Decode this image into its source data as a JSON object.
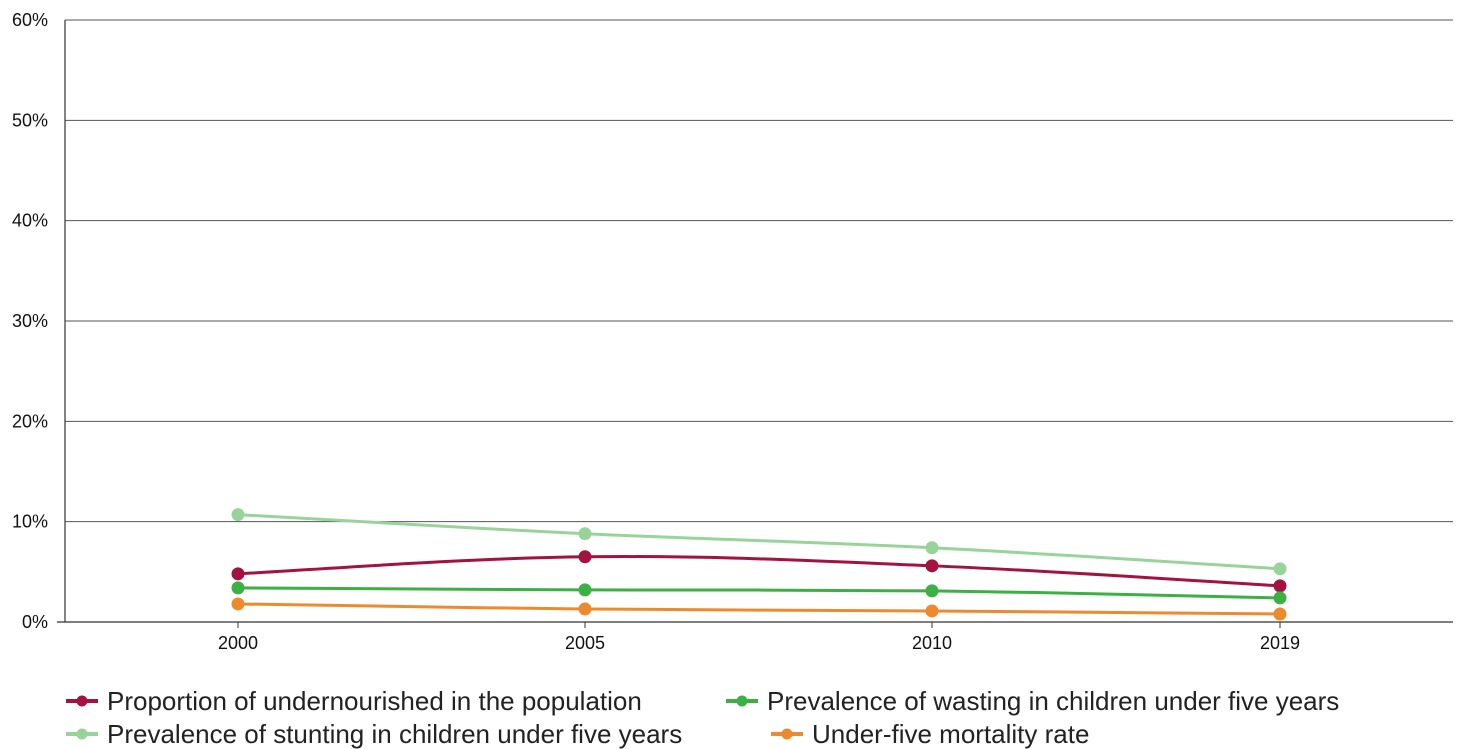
{
  "chart_data": {
    "type": "line",
    "title": "",
    "xlabel": "",
    "ylabel": "",
    "categories": [
      "2000",
      "2005",
      "2010",
      "2019"
    ],
    "ylim": [
      0,
      60
    ],
    "y_ticks": [
      0,
      10,
      20,
      30,
      40,
      50,
      60
    ],
    "y_tick_labels": [
      "0%",
      "10%",
      "20%",
      "30%",
      "40%",
      "50%",
      "60%"
    ],
    "grid": true,
    "legend_position": "bottom-left",
    "series": [
      {
        "name": "Proportion of undernourished in the population",
        "color": "#a4123f",
        "values": [
          4.8,
          6.5,
          5.6,
          3.6
        ]
      },
      {
        "name": "Prevalence of wasting in children under five years",
        "color": "#3cb043",
        "values": [
          3.4,
          3.2,
          3.1,
          2.4
        ]
      },
      {
        "name": "Prevalence of stunting in children under five years",
        "color": "#98d49a",
        "values": [
          10.7,
          8.8,
          7.4,
          5.3
        ]
      },
      {
        "name": "Under-five mortality rate",
        "color": "#ee8a2e",
        "values": [
          1.8,
          1.3,
          1.1,
          0.8
        ]
      }
    ]
  }
}
